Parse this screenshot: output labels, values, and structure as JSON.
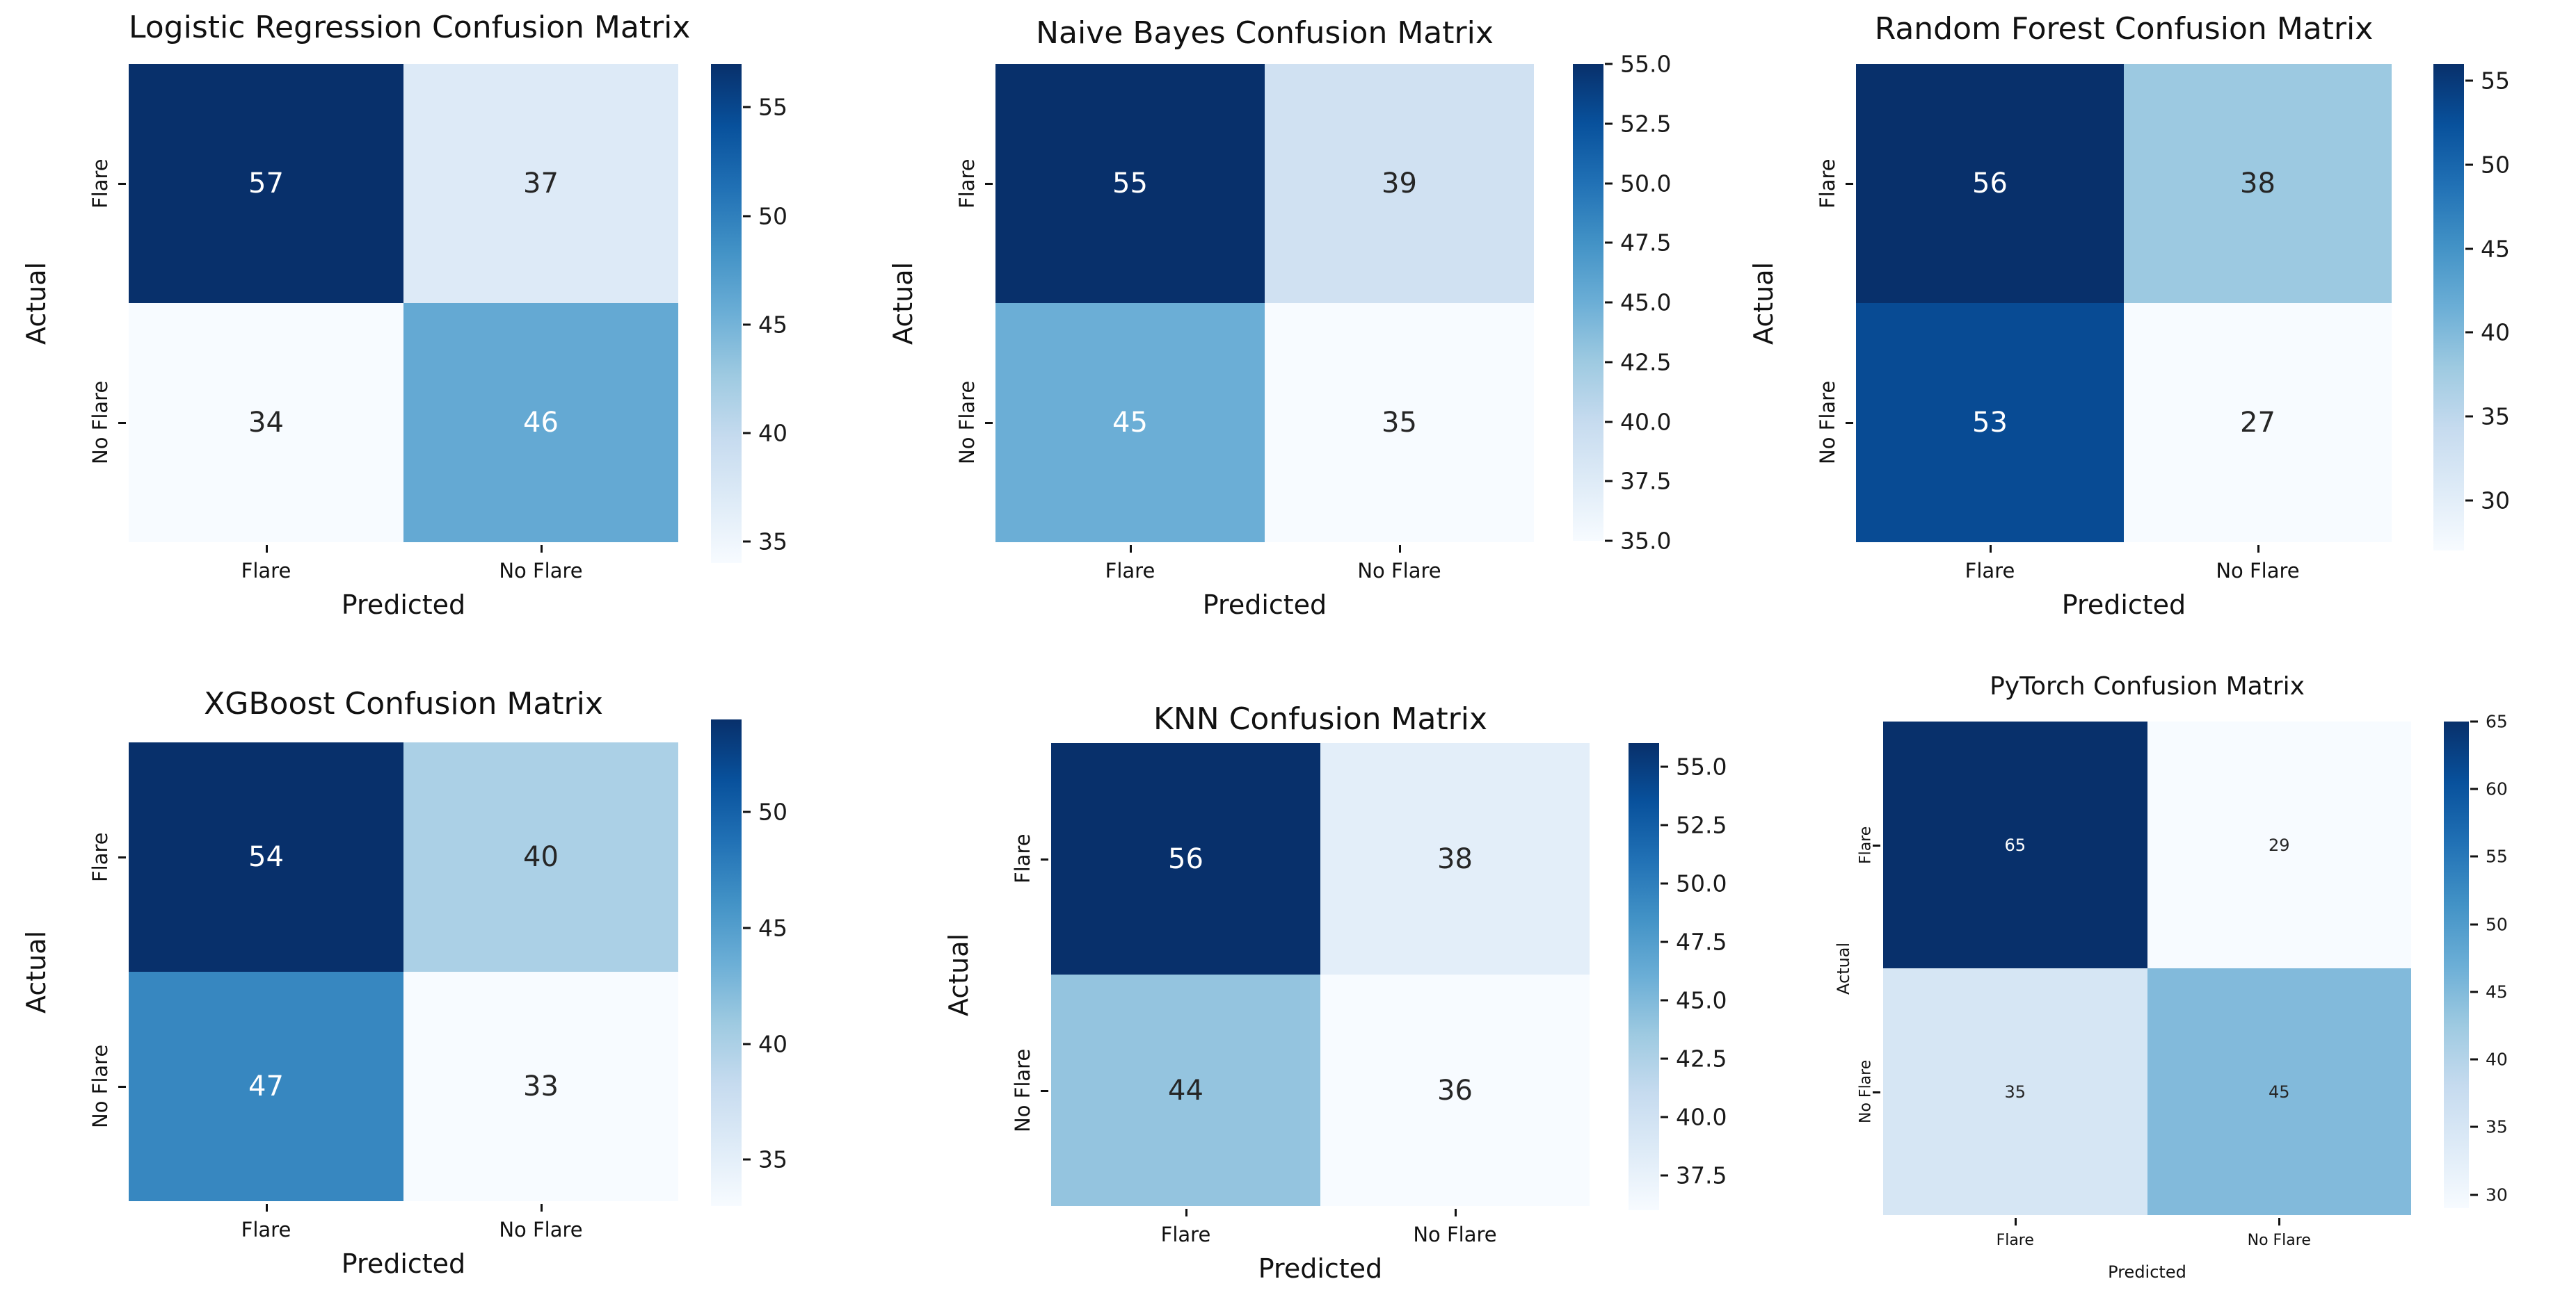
{
  "page": {
    "background": "#ffffff"
  },
  "colors": {
    "colormap_name": "Blues",
    "colormap_stops": [
      "#f7fbff",
      "#deebf7",
      "#c6dbef",
      "#9ecae1",
      "#6baed6",
      "#4292c6",
      "#2171b5",
      "#08519c",
      "#08306b"
    ],
    "annotation_light": "#ffffff",
    "annotation_dark": "#262626",
    "axis_text": "#111111"
  },
  "chart_data": [
    {
      "type": "heatmap",
      "title": "Logistic Regression Confusion Matrix",
      "xlabel": "Predicted",
      "ylabel": "Actual",
      "x_tick_labels": [
        "Flare",
        "No Flare"
      ],
      "y_tick_labels": [
        "Flare",
        "No Flare"
      ],
      "matrix": [
        [
          57,
          37
        ],
        [
          34,
          46
        ]
      ],
      "vmin": 34,
      "vmax": 57,
      "colorbar_ticks": [
        "55",
        "50",
        "45",
        "40",
        "35"
      ],
      "legend_position": "right-colorbar",
      "grid": false
    },
    {
      "type": "heatmap",
      "title": "Naive Bayes Confusion Matrix",
      "xlabel": "Predicted",
      "ylabel": "Actual",
      "x_tick_labels": [
        "Flare",
        "No Flare"
      ],
      "y_tick_labels": [
        "Flare",
        "No Flare"
      ],
      "matrix": [
        [
          55,
          39
        ],
        [
          45,
          35
        ]
      ],
      "vmin": 35,
      "vmax": 55,
      "colorbar_ticks": [
        "55.0",
        "52.5",
        "50.0",
        "47.5",
        "45.0",
        "42.5",
        "40.0",
        "37.5",
        "35.0"
      ],
      "legend_position": "right-colorbar",
      "grid": false
    },
    {
      "type": "heatmap",
      "title": "Random Forest Confusion Matrix",
      "xlabel": "Predicted",
      "ylabel": "Actual",
      "x_tick_labels": [
        "Flare",
        "No Flare"
      ],
      "y_tick_labels": [
        "Flare",
        "No Flare"
      ],
      "matrix": [
        [
          56,
          38
        ],
        [
          53,
          27
        ]
      ],
      "vmin": 27,
      "vmax": 56,
      "colorbar_ticks": [
        "55",
        "50",
        "45",
        "40",
        "35",
        "30"
      ],
      "legend_position": "right-colorbar",
      "grid": false
    },
    {
      "type": "heatmap",
      "title": "XGBoost Confusion Matrix",
      "xlabel": "Predicted",
      "ylabel": "Actual",
      "x_tick_labels": [
        "Flare",
        "No Flare"
      ],
      "y_tick_labels": [
        "Flare",
        "No Flare"
      ],
      "matrix": [
        [
          54,
          40
        ],
        [
          47,
          33
        ]
      ],
      "vmin": 33,
      "vmax": 54,
      "colorbar_ticks": [
        "50",
        "45",
        "40",
        "35"
      ],
      "legend_position": "right-colorbar",
      "grid": false
    },
    {
      "type": "heatmap",
      "title": "KNN Confusion Matrix",
      "xlabel": "Predicted",
      "ylabel": "Actual",
      "x_tick_labels": [
        "Flare",
        "No Flare"
      ],
      "y_tick_labels": [
        "Flare",
        "No Flare"
      ],
      "matrix": [
        [
          56,
          38
        ],
        [
          44,
          36
        ]
      ],
      "vmin": 36,
      "vmax": 56,
      "colorbar_ticks": [
        "55.0",
        "52.5",
        "50.0",
        "47.5",
        "45.0",
        "42.5",
        "40.0",
        "37.5"
      ],
      "legend_position": "right-colorbar",
      "grid": false
    },
    {
      "type": "heatmap",
      "title": "PyTorch Confusion Matrix",
      "xlabel": "Predicted",
      "ylabel": "Actual",
      "x_tick_labels": [
        "Flare",
        "No Flare"
      ],
      "y_tick_labels": [
        "Flare",
        "No Flare"
      ],
      "matrix": [
        [
          65,
          29
        ],
        [
          35,
          45
        ]
      ],
      "vmin": 29,
      "vmax": 65,
      "colorbar_ticks": [
        "65",
        "60",
        "55",
        "50",
        "45",
        "40",
        "35",
        "30"
      ],
      "legend_position": "right-colorbar",
      "grid": false
    }
  ]
}
